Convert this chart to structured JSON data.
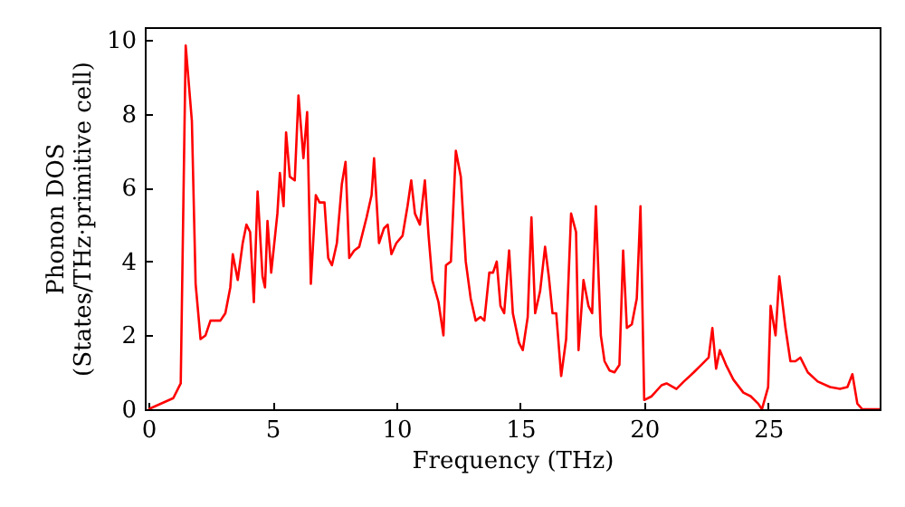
{
  "chart_data": {
    "type": "line",
    "xlabel": "Frequency (THz)",
    "ylabel": "Phonon DOS\n(States/THz·primitive cell)",
    "xlim": [
      -0.15,
      29.5
    ],
    "ylim": [
      0,
      10.35
    ],
    "xticks": [
      0,
      5,
      10,
      15,
      20,
      25
    ],
    "yticks": [
      0,
      2,
      4,
      6,
      8,
      10
    ],
    "grid": false,
    "marker": "none",
    "line_style": "solid",
    "x": [
      0,
      1.0,
      1.3,
      1.5,
      1.75,
      1.9,
      2.1,
      2.3,
      2.5,
      2.9,
      3.1,
      3.3,
      3.4,
      3.6,
      3.8,
      3.95,
      4.1,
      4.25,
      4.4,
      4.6,
      4.7,
      4.8,
      4.95,
      5.2,
      5.3,
      5.45,
      5.55,
      5.7,
      5.9,
      6.05,
      6.25,
      6.4,
      6.55,
      6.75,
      6.9,
      7.1,
      7.25,
      7.4,
      7.6,
      7.8,
      7.95,
      8.1,
      8.3,
      8.5,
      8.8,
      9.0,
      9.1,
      9.3,
      9.5,
      9.65,
      9.8,
      10.0,
      10.25,
      10.45,
      10.6,
      10.75,
      10.95,
      11.15,
      11.3,
      11.45,
      11.7,
      11.9,
      12.0,
      12.2,
      12.4,
      12.6,
      12.8,
      13.0,
      13.2,
      13.4,
      13.55,
      13.75,
      13.9,
      14.05,
      14.2,
      14.35,
      14.55,
      14.7,
      14.95,
      15.1,
      15.3,
      15.45,
      15.6,
      15.8,
      16.0,
      16.15,
      16.3,
      16.45,
      16.65,
      16.85,
      17.05,
      17.25,
      17.35,
      17.55,
      17.75,
      17.9,
      18.05,
      18.25,
      18.4,
      18.6,
      18.8,
      19.0,
      19.15,
      19.3,
      19.5,
      19.7,
      19.85,
      20.0,
      20.3,
      20.7,
      20.9,
      21.3,
      21.6,
      22.0,
      22.3,
      22.6,
      22.75,
      22.9,
      23.05,
      23.3,
      23.6,
      24.0,
      24.3,
      24.6,
      24.75,
      25.0,
      25.1,
      25.3,
      25.45,
      25.7,
      25.9,
      26.1,
      26.3,
      26.6,
      27.0,
      27.5,
      27.9,
      28.2,
      28.4,
      28.6,
      28.8,
      29.5
    ],
    "series": [
      {
        "color": "#ff0000",
        "values": [
          0,
          0.3,
          0.7,
          9.85,
          7.8,
          3.4,
          1.9,
          2.0,
          2.4,
          2.4,
          2.6,
          3.3,
          4.2,
          3.5,
          4.5,
          5.0,
          4.8,
          2.9,
          5.9,
          3.6,
          3.3,
          5.1,
          3.7,
          5.3,
          6.4,
          5.5,
          7.5,
          6.3,
          6.2,
          8.5,
          6.8,
          8.05,
          3.4,
          5.8,
          5.6,
          5.6,
          4.1,
          3.9,
          4.5,
          6.1,
          6.7,
          4.1,
          4.3,
          4.4,
          5.2,
          5.8,
          6.8,
          4.5,
          4.9,
          5.0,
          4.2,
          4.5,
          4.7,
          5.5,
          6.2,
          5.3,
          5.0,
          6.2,
          4.7,
          3.5,
          2.9,
          2.0,
          3.9,
          4.0,
          7.0,
          6.3,
          4.0,
          3.0,
          2.4,
          2.5,
          2.4,
          3.7,
          3.7,
          4.0,
          2.8,
          2.6,
          4.3,
          2.6,
          1.8,
          1.6,
          2.5,
          5.2,
          2.6,
          3.2,
          4.4,
          3.6,
          2.6,
          2.6,
          0.9,
          1.9,
          5.3,
          4.8,
          1.6,
          3.5,
          2.8,
          2.6,
          5.5,
          2.0,
          1.3,
          1.05,
          1.0,
          1.2,
          4.3,
          2.2,
          2.3,
          3.0,
          5.5,
          0.25,
          0.35,
          0.65,
          0.7,
          0.55,
          0.75,
          1.0,
          1.2,
          1.4,
          2.2,
          1.1,
          1.6,
          1.2,
          0.8,
          0.45,
          0.35,
          0.15,
          0.0,
          0.6,
          2.8,
          2.0,
          3.6,
          2.2,
          1.3,
          1.3,
          1.4,
          1.0,
          0.75,
          0.6,
          0.55,
          0.6,
          0.95,
          0.15,
          0.0,
          0.0
        ]
      }
    ]
  }
}
